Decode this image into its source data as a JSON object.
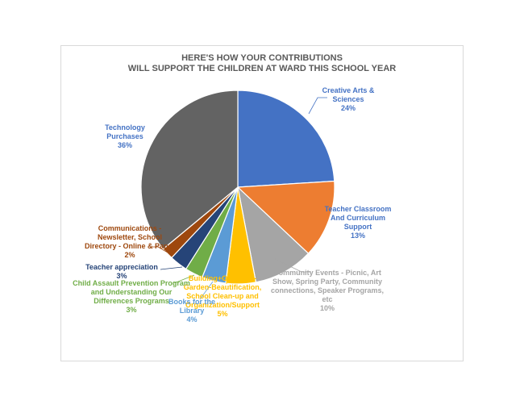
{
  "chart_data": {
    "type": "pie",
    "title": "HERE'S HOW YOUR CONTRIBUTIONS\nWILL SUPPORT THE CHILDREN AT WARD THIS SCHOOL YEAR",
    "slices": [
      {
        "label": "Creative Arts & Sciences",
        "display_lines": [
          "Creative Arts &",
          "Sciences",
          "24%"
        ],
        "value": 24,
        "color": "#4472C4"
      },
      {
        "label": "Teacher Classroom And Curriculum Support",
        "display_lines": [
          "Teacher Classroom",
          "And Curriculum",
          "Support",
          "13%"
        ],
        "value": 13,
        "color": "#ED7D31"
      },
      {
        "label": "Community Events - Picnic, Art Show, Spring Party, Community connections, Speaker Programs, etc",
        "display_lines": [
          "Community Events - Picnic, Art",
          "Show, Spring Party, Community",
          "connections, Speaker Programs,",
          "etc",
          "10%"
        ],
        "value": 10,
        "color": "#A5A5A5"
      },
      {
        "label": "Building+Grounds - Garden-Beautification, School Clean-up and Organization/Support",
        "display_lines": [
          "Building+Grounds -",
          "Garden-Beautification,",
          "School Clean-up and",
          "Organization/Support",
          "5%"
        ],
        "value": 5,
        "color": "#FFC000"
      },
      {
        "label": "Books for the Library",
        "display_lines": [
          "Books for the",
          "Library",
          "4%"
        ],
        "value": 4,
        "color": "#5B9BD5"
      },
      {
        "label": "Child Assault Prevention Program and Understanding Our Differences Programs",
        "display_lines": [
          "Child Assault Prevention Program",
          "and Understanding Our",
          "Differences Programs",
          "3%"
        ],
        "value": 3,
        "color": "#70AD47"
      },
      {
        "label": "Teacher appreciation",
        "display_lines": [
          "Teacher appreciation",
          "3%"
        ],
        "value": 3,
        "color": "#264478"
      },
      {
        "label": "Communications - Newsletter, School Directory - Online & Paper",
        "display_lines": [
          "Communications -",
          "Newsletter, School",
          "Directory - Online & Paper",
          "2%"
        ],
        "value": 2,
        "color": "#9E480E"
      },
      {
        "label": "Technology Purchases",
        "display_lines": [
          "Technology",
          "Purchases",
          "36%"
        ],
        "value": 36,
        "color": "#636363"
      }
    ],
    "label_colors": [
      "#4472C4",
      "#4472C4",
      "#A5A5A5",
      "#FFC000",
      "#5B9BD5",
      "#70AD47",
      "#264478",
      "#9E480E",
      "#4472C4"
    ],
    "legend": "none"
  }
}
